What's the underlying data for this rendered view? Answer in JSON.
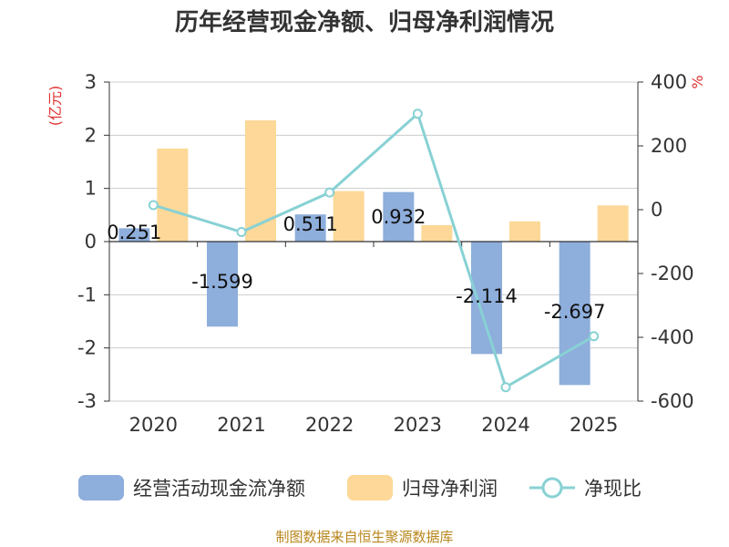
{
  "title": "历年经营现金净额、归母净利润情况",
  "source": "制图数据来自恒生聚源数据库",
  "chart_data": {
    "type": "bar",
    "title": "历年经营现金净额、归母净利润情况",
    "categories": [
      "2020",
      "2021",
      "2022",
      "2023",
      "2024",
      "2025"
    ],
    "ylabel": "(亿元)",
    "y2label": "%",
    "ylim": [
      -3,
      3
    ],
    "y2lim": [
      -600,
      400
    ],
    "yticks": [
      "3",
      "2",
      "1",
      "0",
      "-1",
      "-2",
      "-3"
    ],
    "y2ticks": [
      "400",
      "200",
      "0",
      "-200",
      "-400",
      "-600"
    ],
    "series": [
      {
        "name": "经营活动现金流净额",
        "type": "bar",
        "axis": "left",
        "color": "#8eaedc",
        "values": [
          0.251,
          -1.599,
          0.511,
          0.932,
          -2.114,
          -2.697
        ],
        "labels": [
          "0.251",
          "-1.599",
          "0.511",
          "0.932",
          "-2.114",
          "-2.697"
        ]
      },
      {
        "name": "归母净利润",
        "type": "bar",
        "axis": "left",
        "color": "#fdd898",
        "values": [
          1.75,
          2.28,
          0.95,
          0.31,
          0.38,
          0.68
        ]
      },
      {
        "name": "净现比",
        "type": "line",
        "axis": "right",
        "color": "#88d1d4",
        "values": [
          14.3,
          -70.1,
          53.8,
          300.6,
          -556.3,
          -396.6
        ]
      }
    ]
  }
}
